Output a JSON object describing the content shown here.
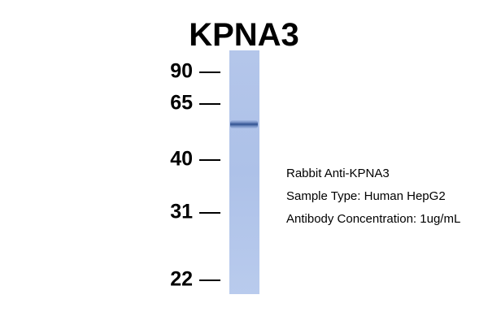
{
  "title": "KPNA3",
  "markers": [
    "90",
    "65",
    "40",
    "31",
    "22"
  ],
  "annotations": [
    "Rabbit Anti-KPNA3",
    "Sample Type: Human HepG2",
    "Antibody Concentration: 1ug/mL"
  ]
}
